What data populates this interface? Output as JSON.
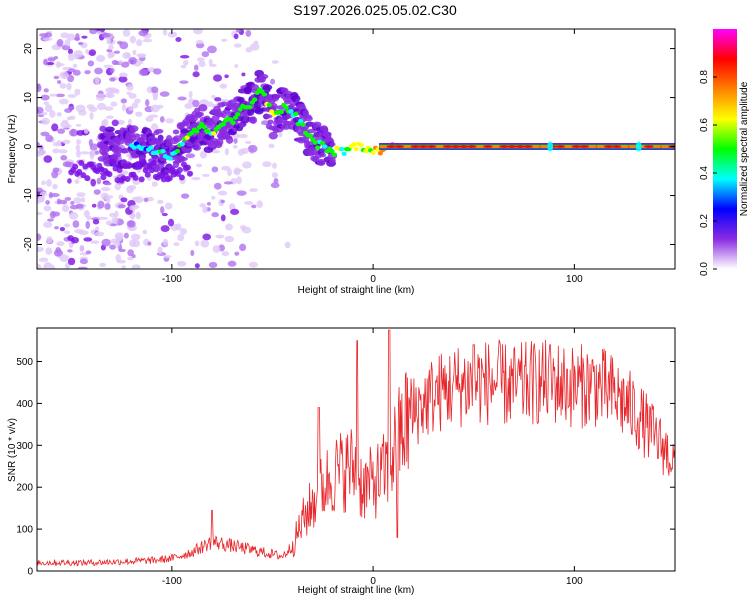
{
  "title": "S197.2026.025.05.02.C30",
  "chart_data": [
    {
      "type": "heatmap",
      "name": "spectrogram",
      "xlabel": "Height of straight line (km)",
      "ylabel": "Frequency (Hz)",
      "xlim": [
        -167,
        150
      ],
      "ylim": [
        -25,
        24
      ],
      "x_ticks": [
        -100,
        0,
        100
      ],
      "y_ticks": [
        -20,
        -10,
        0,
        10,
        20
      ],
      "ridge": {
        "description": "dominant spectral ridge (frequency vs height)",
        "x": [
          -130,
          -115,
          -105,
          -100,
          -95,
          -90,
          -85,
          -80,
          -75,
          -70,
          -65,
          -60,
          -55,
          -50,
          -45,
          -40,
          -35,
          -30,
          -25,
          -20,
          -15,
          -10,
          -5,
          0,
          10,
          30,
          60,
          90,
          120,
          150
        ],
        "y": [
          0,
          0,
          -1,
          -2,
          1,
          3,
          4,
          3,
          5,
          5,
          8,
          9,
          12,
          6,
          8,
          7,
          4,
          1,
          0,
          -1,
          -1,
          0,
          0,
          -1,
          0,
          0,
          0,
          0,
          0,
          0
        ],
        "amplitude": [
          0.3,
          0.35,
          0.4,
          0.45,
          0.5,
          0.55,
          0.5,
          0.5,
          0.55,
          0.5,
          0.55,
          0.55,
          0.5,
          0.55,
          0.5,
          0.45,
          0.5,
          0.45,
          0.45,
          0.5,
          0.5,
          0.55,
          0.55,
          0.6,
          0.9,
          0.95,
          0.95,
          0.95,
          0.95,
          0.95
        ]
      }
    },
    {
      "type": "colorbar",
      "name": "colorbar",
      "label": "Normalized spectral amplitude",
      "range": [
        0,
        1
      ],
      "ticks": [
        "0.0",
        "0.2",
        "0.4",
        "0.6",
        "0.8"
      ],
      "stops": [
        "#ffffff",
        "#8a2be2",
        "#0000ff",
        "#00ffff",
        "#00ff00",
        "#ffff00",
        "#ff8000",
        "#ff0000",
        "#ff00ff"
      ]
    },
    {
      "type": "line",
      "name": "snr",
      "xlabel": "Height of straight line (km)",
      "ylabel": "SNR (10 * v/v)",
      "xlim": [
        -167,
        150
      ],
      "ylim": [
        0,
        580
      ],
      "x_ticks": [
        -100,
        0,
        100
      ],
      "y_ticks": [
        0,
        100,
        200,
        300,
        400,
        500
      ],
      "color": "#e8262b",
      "envelope": {
        "x": [
          -167,
          -140,
          -110,
          -100,
          -90,
          -80,
          -70,
          -60,
          -50,
          -45,
          -40,
          -35,
          -30,
          -25,
          -20,
          -15,
          -10,
          -5,
          0,
          5,
          10,
          15,
          20,
          30,
          40,
          50,
          60,
          70,
          80,
          90,
          100,
          110,
          120,
          130,
          140,
          150
        ],
        "y": [
          20,
          20,
          25,
          30,
          45,
          70,
          60,
          50,
          40,
          35,
          60,
          120,
          160,
          200,
          230,
          240,
          250,
          200,
          210,
          230,
          280,
          340,
          380,
          420,
          440,
          450,
          450,
          440,
          450,
          450,
          440,
          445,
          420,
          380,
          320,
          260
        ]
      },
      "spikes": [
        {
          "x": -80,
          "y": 145
        },
        {
          "x": -27,
          "y": 390
        },
        {
          "x": -8,
          "y": 550
        },
        {
          "x": 8,
          "y": 575
        },
        {
          "x": 12,
          "y": 80
        },
        {
          "x": 50,
          "y": 540
        },
        {
          "x": 88,
          "y": 540
        }
      ]
    }
  ]
}
